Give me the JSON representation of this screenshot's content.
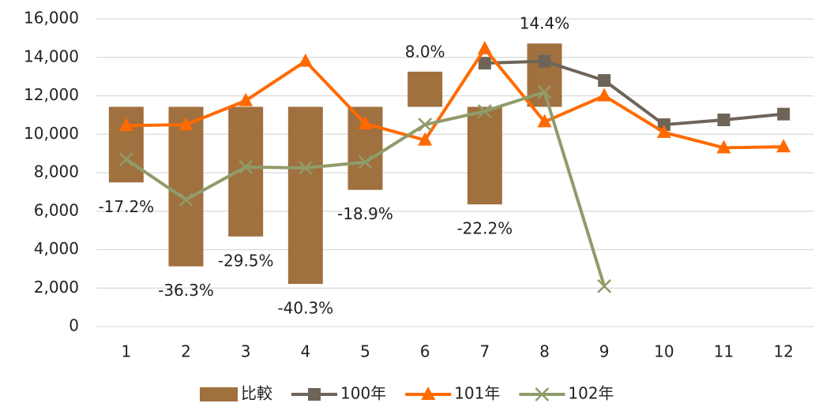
{
  "chart_data": {
    "type": "combo",
    "categories": [
      "1",
      "2",
      "3",
      "4",
      "5",
      "6",
      "7",
      "8",
      "9",
      "10",
      "11",
      "12"
    ],
    "ylim": [
      0,
      16000
    ],
    "yticks": [
      {
        "value": 0,
        "label": "0"
      },
      {
        "value": 2000,
        "label": "2,000"
      },
      {
        "value": 4000,
        "label": "4,000"
      },
      {
        "value": 6000,
        "label": "6,000"
      },
      {
        "value": 8000,
        "label": "8,000"
      },
      {
        "value": 10000,
        "label": "10,000"
      },
      {
        "value": 12000,
        "label": "12,000"
      },
      {
        "value": 14000,
        "label": "14,000"
      },
      {
        "value": 16000,
        "label": "16,000"
      }
    ],
    "y2lim": [
      -50,
      20
    ],
    "grid": true,
    "legend": "bottom",
    "series": [
      {
        "name": "比較",
        "type": "bar",
        "axis": "y2",
        "color": "#a0703f",
        "values": [
          -17.2,
          -36.3,
          -29.5,
          -40.3,
          -18.9,
          8.0,
          -22.2,
          14.4,
          null,
          null,
          null,
          null
        ],
        "value_labels": [
          "-17.2%",
          "-36.3%",
          "-29.5%",
          "-40.3%",
          "-18.9%",
          "8.0%",
          "-22.2%",
          "14.4%",
          null,
          null,
          null,
          null
        ]
      },
      {
        "name": "100年",
        "type": "line",
        "marker": "square",
        "color": "#6e6458",
        "values": [
          null,
          null,
          null,
          null,
          null,
          null,
          13700,
          13800,
          12800,
          10500,
          10750,
          11050
        ]
      },
      {
        "name": "101年",
        "type": "line",
        "marker": "triangle",
        "color": "#ff6a00",
        "values": [
          10450,
          10500,
          11750,
          13800,
          10550,
          9700,
          14450,
          10650,
          12000,
          10100,
          9300,
          9350
        ]
      },
      {
        "name": "102年",
        "type": "line",
        "marker": "x",
        "color": "#8f9c6a",
        "values": [
          8700,
          6600,
          8300,
          8250,
          8550,
          10500,
          11200,
          12200,
          2100,
          null,
          null,
          null
        ]
      }
    ]
  }
}
